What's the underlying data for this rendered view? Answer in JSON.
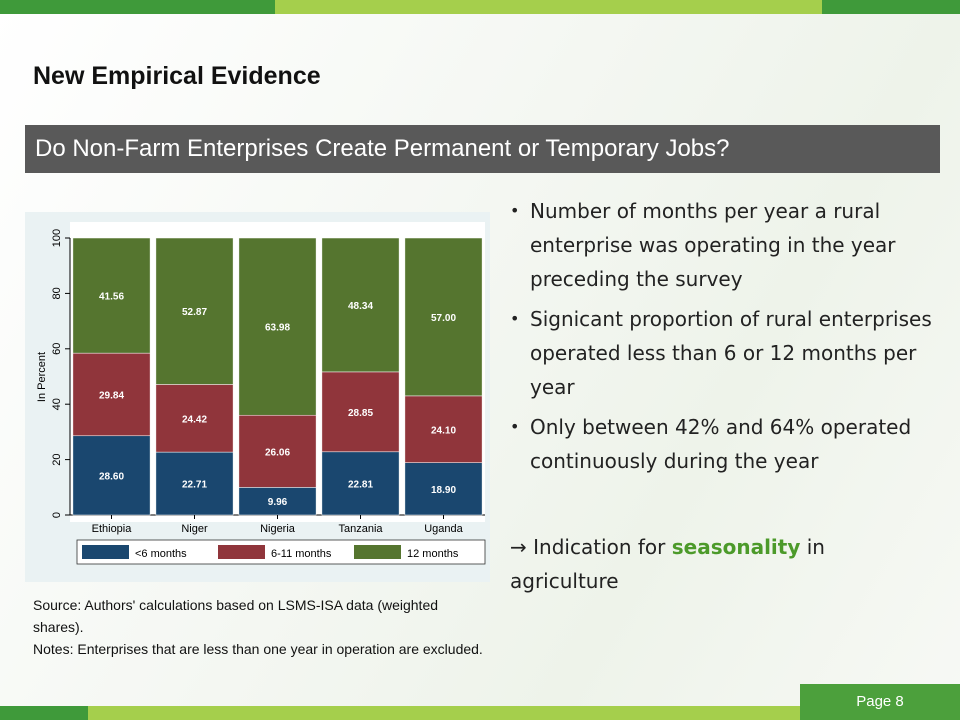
{
  "header": {
    "title": "New Empirical Evidence",
    "banner": "Do Non-Farm Enterprises Create Permanent or Temporary Jobs?"
  },
  "bullets": [
    "Number of months per year a rural enterprise was operating in the year preceding the survey",
    "Signicant proportion of  rural enterprises operated less than 6 or 12 months per year",
    "Only between 42% and 64% operated continuously during the year"
  ],
  "conclusion": {
    "arrow": "→",
    "before": "Indication for",
    "highlight": "seasonality",
    "after": "in agriculture"
  },
  "source": "Source: Authors' calculations based on LSMS-ISA data (weighted shares).",
  "notes": "Notes: Enterprises that are less than one year in operation are excluded.",
  "page": "Page 8",
  "chart_data": {
    "type": "stacked_bar",
    "ylabel": "In Percent",
    "categories": [
      "Ethiopia",
      "Niger",
      "Nigeria",
      "Tanzania",
      "Uganda"
    ],
    "series": [
      {
        "name": "<6 months",
        "color": "#1a476f",
        "values": [
          28.6,
          22.71,
          9.96,
          22.81,
          18.9
        ],
        "value_labels": [
          "28.60",
          "22.71",
          "9.96",
          "22.81",
          "18.90"
        ]
      },
      {
        "name": "6-11 months",
        "color": "#90353b",
        "values": [
          29.84,
          24.42,
          26.06,
          28.85,
          24.1
        ],
        "value_labels": [
          "29.84",
          "24.42",
          "26.06",
          "28.85",
          "24.10"
        ]
      },
      {
        "name": "12 months",
        "color": "#55752f",
        "values": [
          41.56,
          52.87,
          63.98,
          48.34,
          57.0
        ],
        "value_labels": [
          "41.56",
          "52.87",
          "63.98",
          "48.34",
          "57.00"
        ]
      }
    ],
    "ylim": [
      0,
      100
    ],
    "yticks": [
      0,
      20,
      40,
      60,
      80,
      100
    ],
    "legend": "bottom"
  }
}
